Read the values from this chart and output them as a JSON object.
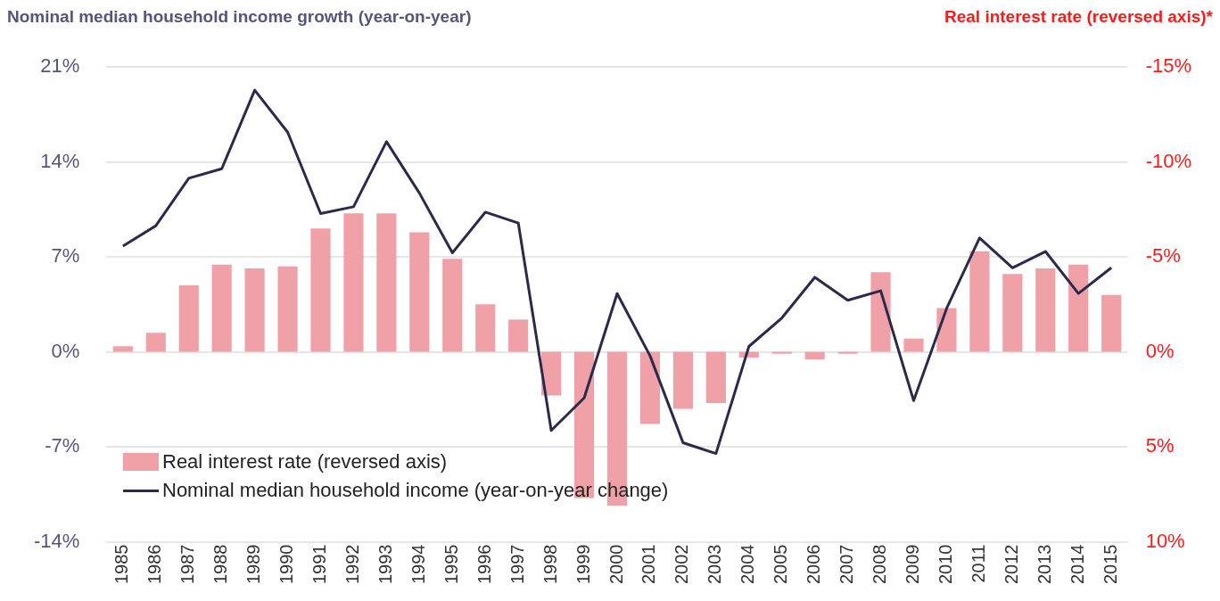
{
  "chart_data": {
    "type": "bar",
    "ylabel": "Nominal median household income growth (year-on-year)",
    "y2label": "Real interest rate (reversed axis)*",
    "categories": [
      "1985",
      "1986",
      "1987",
      "1988",
      "1989",
      "1990",
      "1991",
      "1992",
      "1993",
      "1994",
      "1995",
      "1996",
      "1997",
      "1998",
      "1999",
      "2000",
      "2001",
      "2002",
      "2003",
      "2004",
      "2005",
      "2006",
      "2007",
      "2008",
      "2009",
      "2010",
      "2011",
      "2012",
      "2013",
      "2014",
      "2015"
    ],
    "series": [
      {
        "name": "Real interest rate (reversed axis)",
        "axis": "y2",
        "color": "#f0a1a8",
        "values": [
          -0.3,
          -1.0,
          -3.5,
          -4.6,
          -4.4,
          -4.5,
          -6.5,
          -7.3,
          -7.3,
          -6.3,
          -4.9,
          -2.5,
          -1.7,
          2.3,
          7.7,
          8.1,
          3.8,
          3.0,
          2.7,
          0.3,
          0.1,
          0.4,
          0.1,
          -4.2,
          -0.7,
          -2.3,
          -5.3,
          -4.1,
          -4.4,
          -4.6,
          -3.0
        ]
      },
      {
        "name": "Nominal median household income (year-on-year change)",
        "type": "line",
        "color": "#2b2a4c",
        "values": [
          7.8,
          9.3,
          12.8,
          13.5,
          19.3,
          16.2,
          10.2,
          10.7,
          15.5,
          11.7,
          7.3,
          10.3,
          9.5,
          -5.8,
          -3.4,
          4.3,
          -0.3,
          -6.7,
          -7.5,
          0.4,
          2.5,
          5.5,
          3.8,
          4.5,
          -3.6,
          3.2,
          8.4,
          6.2,
          7.4,
          4.3,
          6.2
        ]
      }
    ],
    "ylim": [
      -14,
      21
    ],
    "yticks": [
      {
        "value": -14,
        "label": "-14%"
      },
      {
        "value": -7,
        "label": "-7%"
      },
      {
        "value": 0,
        "label": "0%"
      },
      {
        "value": 7,
        "label": "7%"
      },
      {
        "value": 14,
        "label": "14%"
      },
      {
        "value": 21,
        "label": "21%"
      }
    ],
    "y2lim": [
      10,
      -15
    ],
    "y2ticks": [
      {
        "value": 10,
        "label": "10%"
      },
      {
        "value": 5,
        "label": "5%"
      },
      {
        "value": 0,
        "label": "0%"
      },
      {
        "value": -5,
        "label": "-5%"
      },
      {
        "value": -10,
        "label": "-10%"
      },
      {
        "value": -15,
        "label": "-15%"
      }
    ],
    "grid": "y",
    "legend": "bottom left",
    "marker": "none"
  }
}
